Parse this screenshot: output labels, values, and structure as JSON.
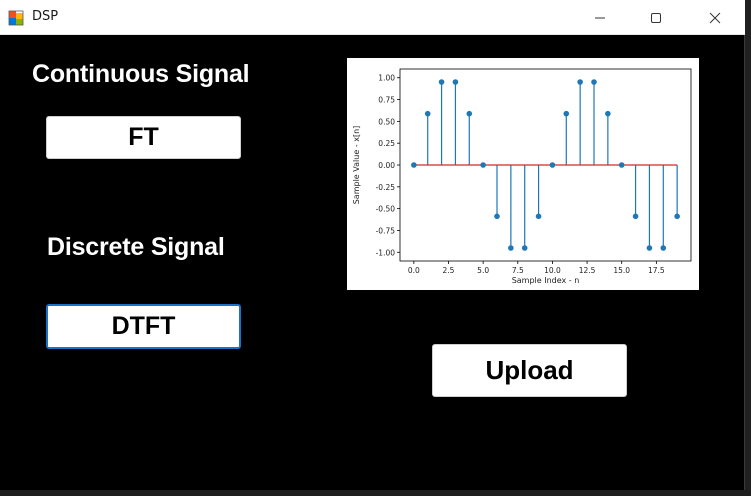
{
  "window": {
    "title": "DSP",
    "icon": "winforms-app-icon",
    "controls": [
      "minimize-icon",
      "maximize-icon",
      "close-icon"
    ]
  },
  "labels": {
    "continuous": "Continuous Signal",
    "discrete": "Discrete Signal"
  },
  "buttons": {
    "ft": "FT",
    "dtft": "DTFT",
    "upload": "Upload"
  },
  "colors": {
    "background": "#000000",
    "stem": "#1f77b4",
    "baseline": "#d62728",
    "focus_border": "#1a73c9"
  },
  "chart_data": {
    "type": "scatter",
    "style": "stem",
    "xlabel": "Sample Index - n",
    "ylabel": "Sample Value - x[n]",
    "xlim": [
      -1,
      20
    ],
    "ylim": [
      -1.1,
      1.1
    ],
    "x_ticks": [
      "0.0",
      "2.5",
      "5.0",
      "7.5",
      "10.0",
      "12.5",
      "15.0",
      "17.5"
    ],
    "y_ticks": [
      "1.00",
      "0.75",
      "0.50",
      "0.25",
      "0.00",
      "-0.25",
      "-0.50",
      "-0.75",
      "-1.00"
    ],
    "x": [
      0,
      1,
      2,
      3,
      4,
      5,
      6,
      7,
      8,
      9,
      10,
      11,
      12,
      13,
      14,
      15,
      16,
      17,
      18,
      19
    ],
    "y": [
      0,
      0.588,
      0.951,
      0.951,
      0.588,
      0,
      -0.588,
      -0.951,
      -0.951,
      -0.588,
      0,
      0.588,
      0.951,
      0.951,
      0.588,
      0,
      -0.588,
      -0.951,
      -0.951,
      -0.588
    ],
    "baseline": 0,
    "grid": false
  }
}
